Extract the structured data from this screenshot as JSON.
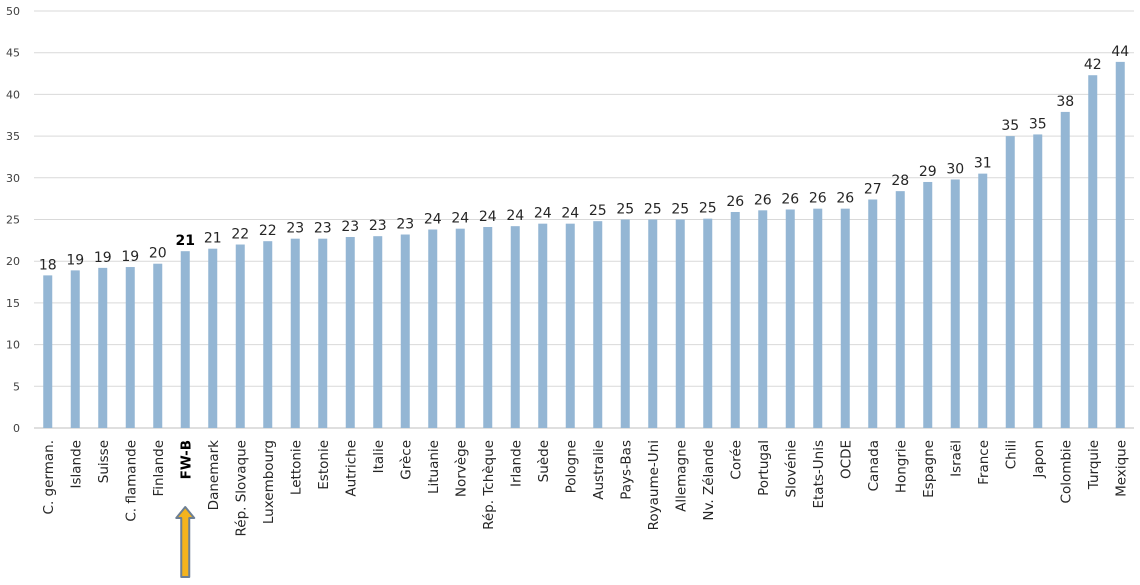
{
  "chart_data": {
    "type": "bar",
    "categories": [
      "C. german.",
      "Islande",
      "Suisse",
      "C. flamande",
      "Finlande",
      "FW-B",
      "Danemark",
      "Rép. Slovaque",
      "Luxembourg",
      "Lettonie",
      "Estonie",
      "Autriche",
      "Italie",
      "Grèce",
      "Lituanie",
      "Norvège",
      "Rép. Tchèque",
      "Irlande",
      "Suède",
      "Pologne",
      "Australie",
      "Pays-Bas",
      "Royaume-Uni",
      "Allemagne",
      "Nv. Zélande",
      "Corée",
      "Portugal",
      "Slovénie",
      "Etats-Unis",
      "OCDE",
      "Canada",
      "Hongrie",
      "Espagne",
      "Israël",
      "France",
      "Chili",
      "Japon",
      "Colombie",
      "Turquie",
      "Mexique"
    ],
    "values": [
      18.3,
      18.9,
      19.2,
      19.3,
      19.7,
      21.2,
      21.5,
      22.0,
      22.4,
      22.7,
      22.7,
      22.9,
      23.0,
      23.2,
      23.8,
      23.9,
      24.1,
      24.2,
      24.5,
      24.5,
      24.8,
      25.0,
      25.0,
      25.0,
      25.1,
      25.9,
      26.1,
      26.2,
      26.3,
      26.3,
      27.4,
      28.4,
      29.5,
      29.8,
      30.5,
      35.0,
      35.2,
      37.9,
      42.3,
      43.9
    ],
    "data_labels": [
      "18",
      "19",
      "19",
      "19",
      "20",
      "21",
      "21",
      "22",
      "22",
      "23",
      "23",
      "23",
      "23",
      "23",
      "24",
      "24",
      "24",
      "24",
      "24",
      "24",
      "25",
      "25",
      "25",
      "25",
      "25",
      "26",
      "26",
      "26",
      "26",
      "26",
      "27",
      "28",
      "29",
      "30",
      "31",
      "35",
      "35",
      "38",
      "42",
      "44"
    ],
    "highlight_category": "FW-B",
    "ylim": [
      0,
      50
    ],
    "yticks": [
      0,
      5,
      10,
      15,
      20,
      25,
      30,
      35,
      40,
      45,
      50
    ],
    "title": "",
    "xlabel": "",
    "ylabel": "",
    "grid": true,
    "legend": "none",
    "colors": {
      "bar": "#94b6d4",
      "grid": "#d9d9d9",
      "axis": "#bfbfbf",
      "arrow_fill": "#f4b31d",
      "arrow_stroke": "#6d7f94"
    }
  }
}
